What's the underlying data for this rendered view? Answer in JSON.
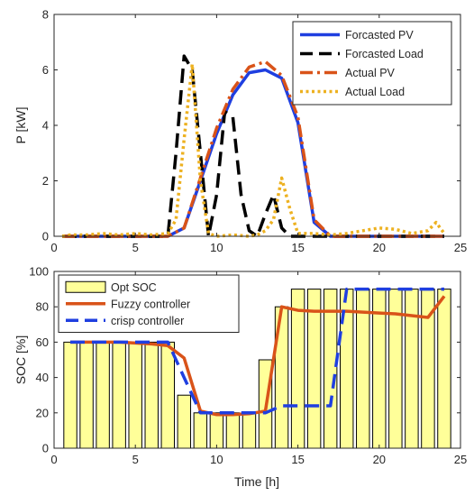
{
  "chart_data": [
    {
      "type": "line",
      "title": "",
      "xlabel": "",
      "ylabel": "P [kW]",
      "xlim": [
        0,
        25
      ],
      "ylim": [
        0,
        8
      ],
      "xticks": [
        0,
        5,
        10,
        15,
        20,
        25
      ],
      "yticks": [
        0,
        2,
        4,
        6,
        8
      ],
      "grid": false,
      "legend": "top-right",
      "series": [
        {
          "name": "Forcasted PV",
          "color": "#1f3fe0",
          "style": "solid",
          "x": [
            0.5,
            1,
            2,
            3,
            4,
            5,
            6,
            7,
            8,
            9,
            10,
            11,
            12,
            13,
            14,
            15,
            16,
            17,
            18,
            19,
            20,
            21,
            22,
            23,
            24
          ],
          "y": [
            0,
            0,
            0,
            0,
            0,
            0,
            0,
            0,
            0.3,
            2.0,
            3.7,
            5.1,
            5.9,
            6.0,
            5.7,
            4.1,
            0.5,
            0,
            0,
            0,
            0,
            0,
            0,
            0,
            0
          ]
        },
        {
          "name": "Forcasted Load",
          "color": "#000000",
          "style": "dash",
          "x": [
            0.5,
            1,
            2,
            3,
            4,
            5,
            6,
            7,
            7.5,
            8,
            8.5,
            9,
            9.5,
            10,
            10.5,
            11,
            11.5,
            12,
            12.5,
            13,
            13.5,
            14,
            14.5,
            15,
            16,
            17,
            18,
            19,
            20,
            21,
            22,
            23,
            24
          ],
          "y": [
            0,
            0,
            0,
            0,
            0,
            0,
            0,
            0,
            3.0,
            6.5,
            6.0,
            3.0,
            0,
            1.5,
            4.5,
            4.3,
            1.5,
            0.2,
            0,
            0.8,
            1.5,
            0.3,
            0,
            0,
            0,
            0,
            0,
            0,
            0,
            0,
            0,
            0,
            0
          ]
        },
        {
          "name": "Actual PV",
          "color": "#d95319",
          "style": "dashdot",
          "x": [
            0.5,
            1,
            2,
            3,
            4,
            5,
            6,
            7,
            8,
            9,
            10,
            11,
            12,
            13,
            14,
            15,
            16,
            17,
            18,
            19,
            20,
            21,
            22,
            23,
            24
          ],
          "y": [
            0,
            0,
            0,
            0,
            0,
            0,
            0,
            0,
            0.3,
            2.1,
            3.9,
            5.3,
            6.1,
            6.3,
            5.8,
            4.3,
            0.6,
            0,
            0,
            0,
            0,
            0,
            0,
            0,
            0
          ]
        },
        {
          "name": "Actual Load",
          "color": "#edb120",
          "style": "dot",
          "x": [
            0.5,
            1,
            2,
            3,
            4,
            5,
            6,
            7,
            7.5,
            8,
            8.5,
            9,
            9.5,
            10,
            11,
            12,
            12.5,
            13,
            13.5,
            14,
            14.5,
            15,
            16,
            17,
            18,
            19,
            20,
            21,
            22,
            23,
            23.5,
            24
          ],
          "y": [
            0,
            0.05,
            0.05,
            0.1,
            0.05,
            0.1,
            0.05,
            0.1,
            0.6,
            3.5,
            6.2,
            2.0,
            0.1,
            0,
            0.05,
            0,
            0.05,
            0.2,
            0.6,
            2.1,
            1.0,
            0.1,
            0.1,
            0.05,
            0.1,
            0.2,
            0.3,
            0.25,
            0.1,
            0.2,
            0.5,
            0.1
          ]
        }
      ]
    },
    {
      "type": "bar",
      "title": "",
      "xlabel": "Time [h]",
      "ylabel": "SOC [%]",
      "xlim": [
        0,
        25
      ],
      "ylim": [
        0,
        100
      ],
      "xticks": [
        0,
        5,
        10,
        15,
        20,
        25
      ],
      "yticks": [
        0,
        20,
        40,
        60,
        80,
        100
      ],
      "grid": false,
      "legend": "top-left",
      "bars": {
        "name": "Opt SOC",
        "color": "#ffff99",
        "x": [
          1,
          2,
          3,
          4,
          5,
          6,
          7,
          8,
          9,
          10,
          11,
          12,
          13,
          14,
          15,
          16,
          17,
          18,
          19,
          20,
          21,
          22,
          23,
          24
        ],
        "values": [
          60,
          60,
          60,
          60,
          60,
          60,
          60,
          30,
          20,
          20,
          20,
          20,
          50,
          80,
          90,
          90,
          90,
          90,
          90,
          90,
          90,
          90,
          90,
          90
        ]
      },
      "series": [
        {
          "name": "Fuzzy controller",
          "color": "#d95319",
          "style": "solid",
          "x": [
            1,
            2,
            3,
            4,
            5,
            6,
            7,
            8,
            9,
            10,
            11,
            12,
            13,
            14,
            15,
            16,
            17,
            18,
            19,
            20,
            21,
            22,
            23,
            24
          ],
          "y": [
            60,
            60,
            60,
            60,
            59.5,
            59,
            58,
            51,
            21,
            19,
            19,
            19.5,
            21,
            80,
            78,
            77.5,
            77.5,
            77.5,
            77,
            76.5,
            76,
            75,
            74,
            86
          ]
        },
        {
          "name": "crisp controller",
          "color": "#1f3fe0",
          "style": "dash",
          "x": [
            1,
            2,
            3,
            4,
            5,
            6,
            7,
            8,
            9,
            10,
            11,
            12,
            13,
            14,
            15,
            16,
            17,
            18,
            19,
            20,
            21,
            22,
            23,
            24
          ],
          "y": [
            60,
            60,
            60,
            60,
            60,
            60,
            60,
            40,
            20,
            20,
            20,
            20,
            20,
            24,
            24,
            24,
            24,
            90,
            90,
            90,
            90,
            90,
            90,
            90
          ]
        }
      ]
    }
  ]
}
